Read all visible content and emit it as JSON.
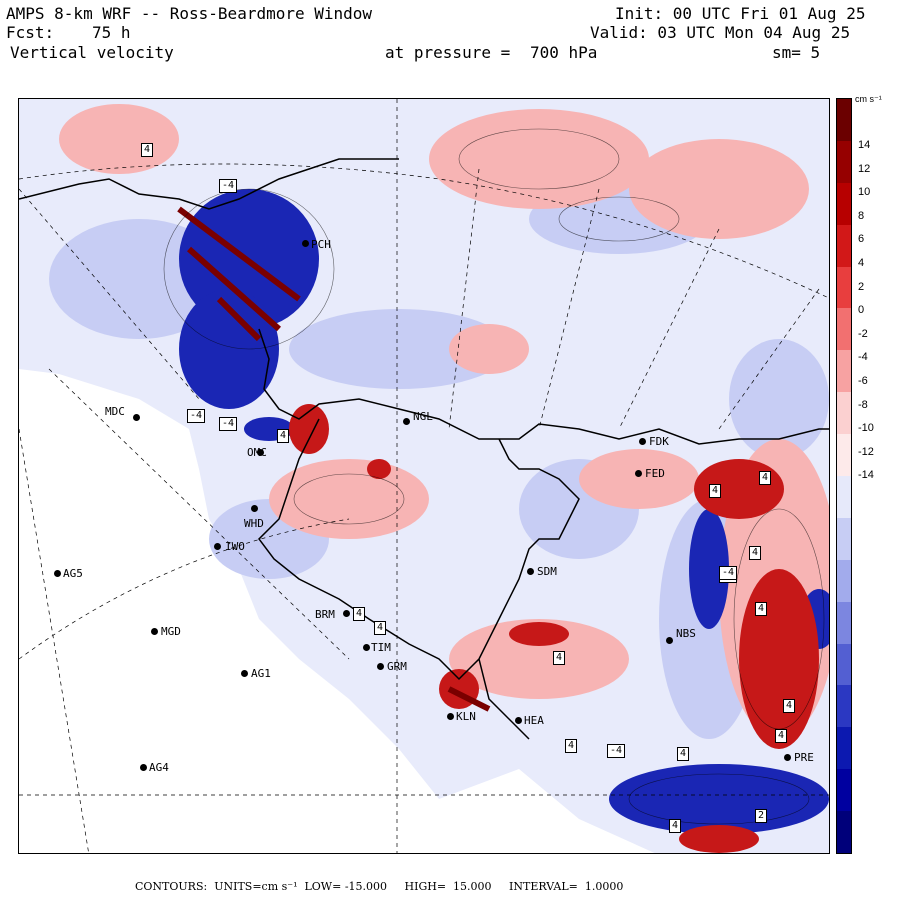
{
  "header": {
    "line1_left": "AMPS 8-km WRF -- Ross-Beardmore Window",
    "line2_left_label": "Fcst:",
    "line2_left_value": "75 h",
    "line3_left": "Vertical velocity",
    "line3_mid_label": "at pressure =",
    "line3_mid_value": "700 hPa",
    "line1_right": "Init: 00 UTC Fri 01 Aug 25",
    "line2_right": "Valid: 03 UTC Mon 04 Aug 25",
    "line3_right": "sm= 5"
  },
  "stations": [
    {
      "id": "MDC",
      "label": "MDC"
    },
    {
      "id": "NGL",
      "label": "NGL"
    },
    {
      "id": "FDK",
      "label": "FDK"
    },
    {
      "id": "FED",
      "label": "FED"
    },
    {
      "id": "IWO",
      "label": "IWO"
    },
    {
      "id": "AG5",
      "label": "AG5"
    },
    {
      "id": "SDM",
      "label": "SDM"
    },
    {
      "id": "MGD",
      "label": "MGD"
    },
    {
      "id": "AG1",
      "label": "AG1"
    },
    {
      "id": "GRM",
      "label": "GRM"
    },
    {
      "id": "NBS",
      "label": "NBS"
    },
    {
      "id": "AG4",
      "label": "AG4"
    },
    {
      "id": "KLN",
      "label": "KLN"
    },
    {
      "id": "HEA",
      "label": "HEA"
    },
    {
      "id": "PRE",
      "label": "PRE"
    },
    {
      "id": "PCH",
      "label": "PCH"
    },
    {
      "id": "TIM",
      "label": "TIM"
    },
    {
      "id": "BRM",
      "label": "BRM"
    },
    {
      "id": "WHD",
      "label": "WHD"
    },
    {
      "id": "OMC",
      "label": "OMC"
    }
  ],
  "contour_labels": [
    "4",
    "-4",
    "-4",
    "4",
    "4",
    "4",
    "-4",
    "4",
    "4",
    "4",
    "-4",
    "4",
    "4",
    "4",
    "-4",
    "4",
    "4",
    "2",
    "-4",
    "4",
    "4"
  ],
  "colorbar": {
    "units_label": "cm s⁻¹",
    "ticks": [
      "14",
      "12",
      "10",
      "8",
      "6",
      "4",
      "2",
      "0",
      "-2",
      "-4",
      "-6",
      "-8",
      "-10",
      "-12",
      "-14"
    ],
    "colors": [
      "#6b0000",
      "#960000",
      "#b70000",
      "#d21818",
      "#e83e3e",
      "#f27070",
      "#f7a2a2",
      "#fbd0d0",
      "#fdeaea",
      "#e6e9fa",
      "#c7cdf4",
      "#a2abec",
      "#7c86e0",
      "#535fd2",
      "#2b38c2",
      "#0c19b0",
      "#0000a0",
      "#00007a"
    ]
  },
  "footer": {
    "text": "CONTOURS:  UNITS=cm s⁻¹  LOW= -15.000     HIGH=  15.000     INTERVAL=  1.0000"
  },
  "colors": {
    "positive_strong": "#b00000",
    "positive_light": "#f6b8b8",
    "negative_strong": "#00008c",
    "negative_light": "#b4bcf0",
    "background_neutral": "#e8ebfb"
  }
}
